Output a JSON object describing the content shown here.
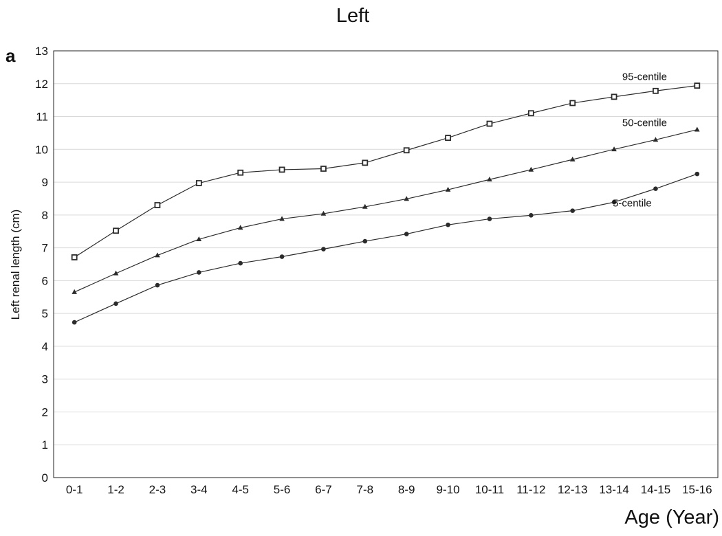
{
  "chart_data": {
    "type": "line",
    "title": "Left",
    "panel_label": "a",
    "xlabel": "Age (Year)",
    "ylabel": "Left renal length (cm)",
    "categories": [
      "0-1",
      "1-2",
      "2-3",
      "3-4",
      "4-5",
      "5-6",
      "6-7",
      "7-8",
      "8-9",
      "9-10",
      "10-11",
      "11-12",
      "12-13",
      "13-14",
      "14-15",
      "15-16"
    ],
    "ylim": [
      0,
      13
    ],
    "yticks": [
      0,
      1,
      2,
      3,
      4,
      5,
      6,
      7,
      8,
      9,
      10,
      11,
      12,
      13
    ],
    "grid": "horizontal",
    "legend": "none",
    "series": [
      {
        "name": "95-centile",
        "marker": "open-square",
        "values": [
          6.71,
          7.52,
          8.3,
          8.97,
          9.29,
          9.38,
          9.41,
          9.59,
          9.97,
          10.35,
          10.78,
          11.1,
          11.41,
          11.6,
          11.78,
          11.94
        ]
      },
      {
        "name": "50-centile",
        "marker": "filled-triangle",
        "values": [
          5.65,
          6.22,
          6.77,
          7.26,
          7.61,
          7.88,
          8.04,
          8.25,
          8.49,
          8.77,
          9.08,
          9.38,
          9.69,
          10.0,
          10.29,
          10.6
        ]
      },
      {
        "name": "5-centile",
        "marker": "filled-circle",
        "values": [
          4.73,
          5.3,
          5.86,
          6.25,
          6.53,
          6.73,
          6.96,
          7.2,
          7.42,
          7.7,
          7.88,
          7.99,
          8.13,
          8.39,
          8.8,
          9.25
        ]
      }
    ],
    "colors": {
      "line": "#2b2b2b",
      "grid": "#d9d9d9",
      "axis": "#222222"
    }
  }
}
